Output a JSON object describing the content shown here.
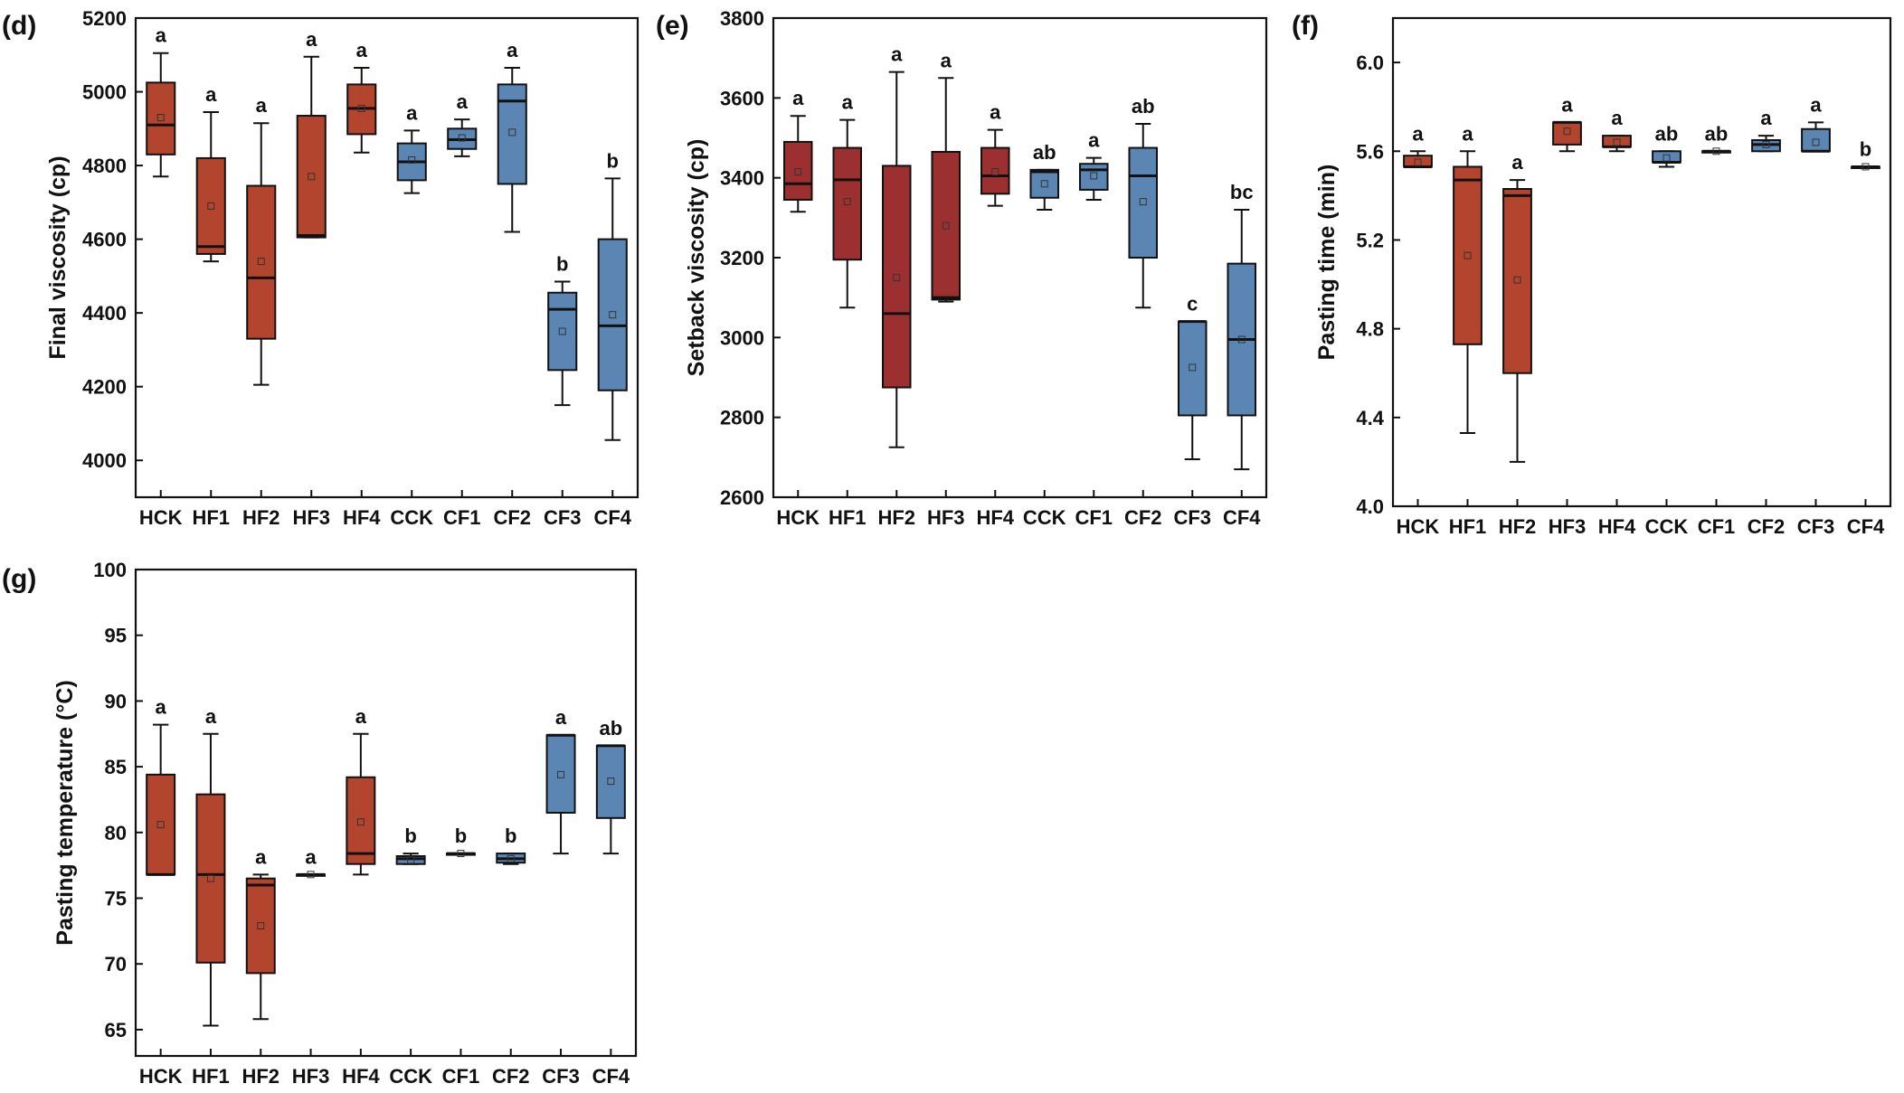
{
  "colors": {
    "red_fill": "#b3442d",
    "darkred_fill": "#9c2f2f",
    "blue_fill": "#5b86b4",
    "stroke": "#111111"
  },
  "chart_data": [
    {
      "type": "box",
      "panel_label": "(d)",
      "ylabel": "Final viscosity (cp)",
      "categories": [
        "HCK",
        "HF1",
        "HF2",
        "HF3",
        "HF4",
        "CCK",
        "CF1",
        "CF2",
        "CF3",
        "CF4"
      ],
      "ylim": [
        3900,
        5200
      ],
      "yticks": [
        "4000",
        "4200",
        "4400",
        "4600",
        "4800",
        "5000",
        "5200"
      ],
      "fill": [
        "red",
        "red",
        "red",
        "red",
        "red",
        "blue",
        "blue",
        "blue",
        "blue",
        "blue"
      ],
      "boxes": [
        {
          "min": 4770,
          "q1": 4830,
          "median": 4910,
          "q3": 5025,
          "max": 5105,
          "mean": 4930,
          "letter": "a"
        },
        {
          "min": 4540,
          "q1": 4560,
          "median": 4580,
          "q3": 4820,
          "max": 4945,
          "mean": 4690,
          "letter": "a"
        },
        {
          "min": 4205,
          "q1": 4330,
          "median": 4495,
          "q3": 4745,
          "max": 4915,
          "mean": 4540,
          "letter": "a"
        },
        {
          "min": 4605,
          "q1": 4605,
          "median": 4610,
          "q3": 4935,
          "max": 5095,
          "mean": 4770,
          "letter": "a"
        },
        {
          "min": 4835,
          "q1": 4885,
          "median": 4955,
          "q3": 5020,
          "max": 5065,
          "mean": 4955,
          "letter": "a"
        },
        {
          "min": 4725,
          "q1": 4760,
          "median": 4810,
          "q3": 4860,
          "max": 4895,
          "mean": 4815,
          "letter": "a"
        },
        {
          "min": 4825,
          "q1": 4845,
          "median": 4870,
          "q3": 4900,
          "max": 4925,
          "mean": 4875,
          "letter": "a"
        },
        {
          "min": 4620,
          "q1": 4750,
          "median": 4975,
          "q3": 5020,
          "max": 5065,
          "mean": 4890,
          "letter": "a"
        },
        {
          "min": 4150,
          "q1": 4245,
          "median": 4410,
          "q3": 4455,
          "max": 4485,
          "mean": 4350,
          "letter": "b"
        },
        {
          "min": 4055,
          "q1": 4190,
          "median": 4365,
          "q3": 4600,
          "max": 4765,
          "mean": 4395,
          "letter": "b"
        }
      ]
    },
    {
      "type": "box",
      "panel_label": "(e)",
      "ylabel": "Setback viscosity (cp)",
      "categories": [
        "HCK",
        "HF1",
        "HF2",
        "HF3",
        "HF4",
        "CCK",
        "CF1",
        "CF2",
        "CF3",
        "CF4"
      ],
      "ylim": [
        2600,
        3800
      ],
      "yticks": [
        "2600",
        "2800",
        "3000",
        "3200",
        "3400",
        "3600",
        "3800"
      ],
      "fill": [
        "darkred",
        "darkred",
        "darkred",
        "darkred",
        "darkred",
        "blue",
        "blue",
        "blue",
        "blue",
        "blue"
      ],
      "boxes": [
        {
          "min": 3315,
          "q1": 3345,
          "median": 3385,
          "q3": 3490,
          "max": 3555,
          "mean": 3415,
          "letter": "a"
        },
        {
          "min": 3075,
          "q1": 3195,
          "median": 3395,
          "q3": 3475,
          "max": 3545,
          "mean": 3340,
          "letter": "a"
        },
        {
          "min": 2725,
          "q1": 2875,
          "median": 3060,
          "q3": 3430,
          "max": 3665,
          "mean": 3150,
          "letter": "a"
        },
        {
          "min": 3090,
          "q1": 3095,
          "median": 3100,
          "q3": 3465,
          "max": 3650,
          "mean": 3280,
          "letter": "a"
        },
        {
          "min": 3330,
          "q1": 3360,
          "median": 3405,
          "q3": 3475,
          "max": 3520,
          "mean": 3415,
          "letter": "a"
        },
        {
          "min": 3320,
          "q1": 3350,
          "median": 3415,
          "q3": 3420,
          "max": 3420,
          "mean": 3385,
          "letter": "ab"
        },
        {
          "min": 3345,
          "q1": 3370,
          "median": 3420,
          "q3": 3435,
          "max": 3450,
          "mean": 3405,
          "letter": "a"
        },
        {
          "min": 3075,
          "q1": 3200,
          "median": 3405,
          "q3": 3475,
          "max": 3535,
          "mean": 3340,
          "letter": "ab"
        },
        {
          "min": 2695,
          "q1": 2805,
          "median": 3040,
          "q3": 3040,
          "max": 3040,
          "mean": 2925,
          "letter": "c"
        },
        {
          "min": 2670,
          "q1": 2805,
          "median": 2995,
          "q3": 3185,
          "max": 3320,
          "mean": 2995,
          "letter": "bc"
        }
      ]
    },
    {
      "type": "box",
      "panel_label": "(f)",
      "ylabel": "Pasting time (min)",
      "categories": [
        "HCK",
        "HF1",
        "HF2",
        "HF3",
        "HF4",
        "CCK",
        "CF1",
        "CF2",
        "CF3",
        "CF4"
      ],
      "ylim": [
        4.0,
        6.2
      ],
      "yticks": [
        "4.0",
        "4.4",
        "4.8",
        "5.2",
        "5.6",
        "6.0"
      ],
      "fill": [
        "red",
        "red",
        "red",
        "red",
        "red",
        "blue",
        "blue",
        "blue",
        "blue",
        "blue"
      ],
      "boxes": [
        {
          "min": 5.53,
          "q1": 5.53,
          "median": 5.53,
          "q3": 5.58,
          "max": 5.6,
          "mean": 5.55,
          "letter": "a"
        },
        {
          "min": 4.33,
          "q1": 4.73,
          "median": 5.47,
          "q3": 5.53,
          "max": 5.6,
          "mean": 5.13,
          "letter": "a"
        },
        {
          "min": 4.2,
          "q1": 4.6,
          "median": 5.4,
          "q3": 5.43,
          "max": 5.47,
          "mean": 5.02,
          "letter": "a"
        },
        {
          "min": 5.6,
          "q1": 5.63,
          "median": 5.73,
          "q3": 5.73,
          "max": 5.73,
          "mean": 5.69,
          "letter": "a"
        },
        {
          "min": 5.6,
          "q1": 5.62,
          "median": 5.62,
          "q3": 5.67,
          "max": 5.67,
          "mean": 5.64,
          "letter": "a"
        },
        {
          "min": 5.53,
          "q1": 5.55,
          "median": 5.55,
          "q3": 5.6,
          "max": 5.6,
          "mean": 5.57,
          "letter": "ab"
        },
        {
          "min": 5.6,
          "q1": 5.6,
          "median": 5.6,
          "q3": 5.6,
          "max": 5.6,
          "mean": 5.6,
          "letter": "ab"
        },
        {
          "min": 5.6,
          "q1": 5.6,
          "median": 5.63,
          "q3": 5.65,
          "max": 5.67,
          "mean": 5.63,
          "letter": "a"
        },
        {
          "min": 5.6,
          "q1": 5.6,
          "median": 5.6,
          "q3": 5.7,
          "max": 5.73,
          "mean": 5.64,
          "letter": "a"
        },
        {
          "min": 5.53,
          "q1": 5.53,
          "median": 5.53,
          "q3": 5.53,
          "max": 5.53,
          "mean": 5.53,
          "letter": "b"
        }
      ]
    },
    {
      "type": "box",
      "panel_label": "(g)",
      "ylabel": "Pasting temperature (°C)",
      "categories": [
        "HCK",
        "HF1",
        "HF2",
        "HF3",
        "HF4",
        "CCK",
        "CF1",
        "CF2",
        "CF3",
        "CF4"
      ],
      "ylim": [
        63,
        100
      ],
      "yticks": [
        "65",
        "70",
        "75",
        "80",
        "85",
        "90",
        "95",
        "100"
      ],
      "fill": [
        "red",
        "red",
        "red",
        "red",
        "red",
        "blue",
        "blue",
        "blue",
        "blue",
        "blue"
      ],
      "boxes": [
        {
          "min": 76.8,
          "q1": 76.8,
          "median": 76.8,
          "q3": 84.4,
          "max": 88.2,
          "mean": 80.6,
          "letter": "a"
        },
        {
          "min": 65.3,
          "q1": 70.1,
          "median": 76.8,
          "q3": 82.9,
          "max": 87.5,
          "mean": 76.5,
          "letter": "a"
        },
        {
          "min": 65.8,
          "q1": 69.3,
          "median": 76.0,
          "q3": 76.5,
          "max": 76.8,
          "mean": 72.9,
          "letter": "a"
        },
        {
          "min": 76.8,
          "q1": 76.8,
          "median": 76.8,
          "q3": 76.8,
          "max": 76.8,
          "mean": 76.8,
          "letter": "a"
        },
        {
          "min": 76.8,
          "q1": 77.6,
          "median": 78.4,
          "q3": 84.2,
          "max": 87.5,
          "mean": 80.8,
          "letter": "a"
        },
        {
          "min": 77.6,
          "q1": 77.6,
          "median": 78.0,
          "q3": 78.2,
          "max": 78.4,
          "mean": 77.9,
          "letter": "b"
        },
        {
          "min": 78.4,
          "q1": 78.4,
          "median": 78.4,
          "q3": 78.4,
          "max": 78.4,
          "mean": 78.4,
          "letter": "b"
        },
        {
          "min": 77.6,
          "q1": 77.7,
          "median": 78.0,
          "q3": 78.4,
          "max": 78.4,
          "mean": 78.0,
          "letter": "b"
        },
        {
          "min": 78.4,
          "q1": 81.5,
          "median": 87.4,
          "q3": 87.4,
          "max": 87.4,
          "mean": 84.4,
          "letter": "a"
        },
        {
          "min": 78.4,
          "q1": 81.1,
          "median": 86.6,
          "q3": 86.6,
          "max": 86.6,
          "mean": 83.9,
          "letter": "ab"
        }
      ]
    }
  ]
}
